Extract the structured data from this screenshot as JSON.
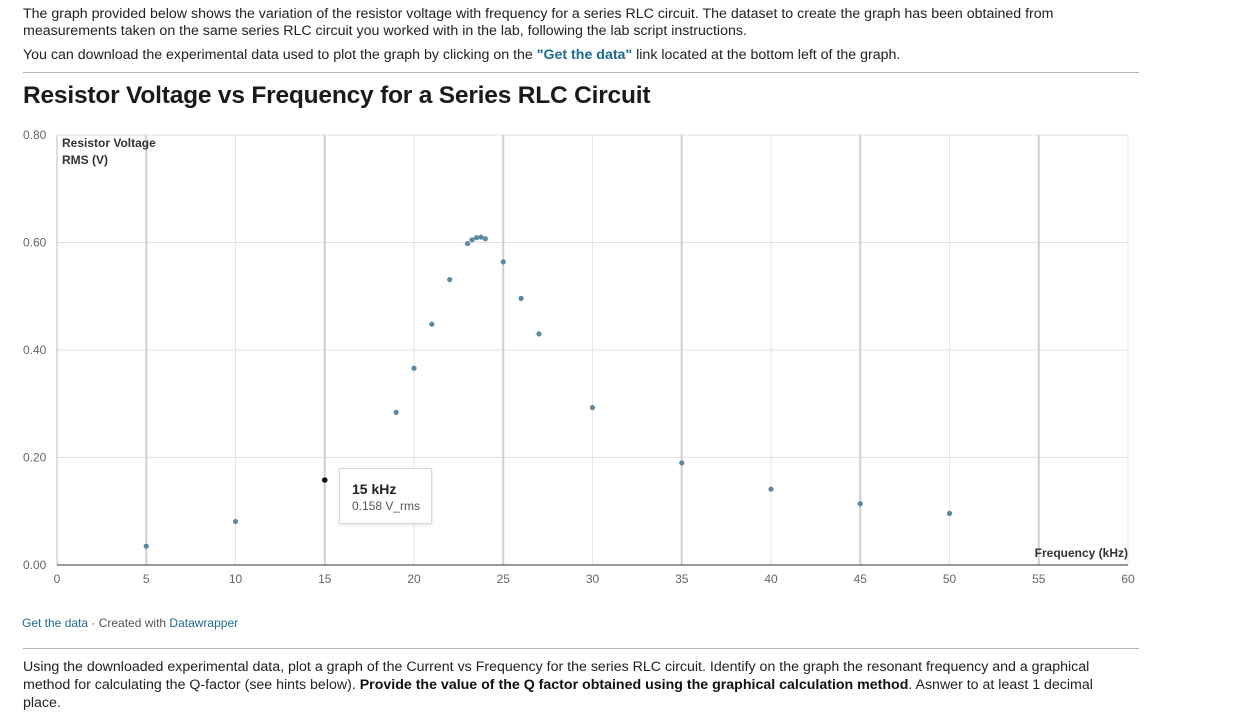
{
  "intro": {
    "paragraph1": "The graph provided below shows the variation of the resistor voltage with frequency for a series RLC circuit. The dataset to create the graph has been obtained from measurements taken on the same series RLC circuit you worked with in the lab, following the lab script instructions.",
    "paragraph2_before": "You can download the experimental data used to plot the graph by clicking on the ",
    "paragraph2_link": "\"Get the data\"",
    "paragraph2_after": " link located at the bottom left of the graph."
  },
  "chart_data": {
    "type": "scatter",
    "title": "Resistor Voltage vs Frequency for a Series RLC Circuit",
    "ylabel_line1": "Resistor Voltage",
    "ylabel_line2": "RMS (V)",
    "xlabel": "Frequency (kHz)",
    "xlim": [
      0,
      60
    ],
    "ylim": [
      0,
      0.8
    ],
    "x_ticks": [
      "0",
      "5",
      "10",
      "15",
      "20",
      "25",
      "30",
      "35",
      "40",
      "45",
      "50",
      "55",
      "60"
    ],
    "y_ticks": [
      "0.00",
      "0.20",
      "0.40",
      "0.60",
      "0.80"
    ],
    "grid": true,
    "point_color": "#5b8a9e",
    "highlight_color": "#111111",
    "series": [
      {
        "points": [
          {
            "x": 5,
            "y": 0.035
          },
          {
            "x": 10,
            "y": 0.081
          },
          {
            "x": 15,
            "y": 0.158
          },
          {
            "x": 19,
            "y": 0.284
          },
          {
            "x": 20,
            "y": 0.366
          },
          {
            "x": 21,
            "y": 0.448
          },
          {
            "x": 22,
            "y": 0.531
          },
          {
            "x": 23,
            "y": 0.598
          },
          {
            "x": 23.25,
            "y": 0.605
          },
          {
            "x": 23.5,
            "y": 0.609
          },
          {
            "x": 23.75,
            "y": 0.61
          },
          {
            "x": 24,
            "y": 0.607
          },
          {
            "x": 25,
            "y": 0.564
          },
          {
            "x": 26,
            "y": 0.496
          },
          {
            "x": 27,
            "y": 0.43
          },
          {
            "x": 30,
            "y": 0.293
          },
          {
            "x": 35,
            "y": 0.19
          },
          {
            "x": 40,
            "y": 0.141
          },
          {
            "x": 45,
            "y": 0.114
          },
          {
            "x": 50,
            "y": 0.096
          }
        ]
      }
    ],
    "highlight_x": 15,
    "tooltip": {
      "title": "15 kHz",
      "value": "0.158 V_rms"
    }
  },
  "footer": {
    "get_data": "Get the data",
    "separator": " · Created with ",
    "datawrapper": "Datawrapper"
  },
  "question": {
    "text_before": "Using the downloaded experimental data, plot a graph of the Current vs Frequency for the series RLC circuit. Identify on the graph the resonant frequency and a graphical method for calculating the Q-factor (see hints below). ",
    "text_bold": "Provide the value of the Q factor obtained using the graphical calculation method",
    "text_after": ". Asnwer to at least 1 decimal place."
  }
}
